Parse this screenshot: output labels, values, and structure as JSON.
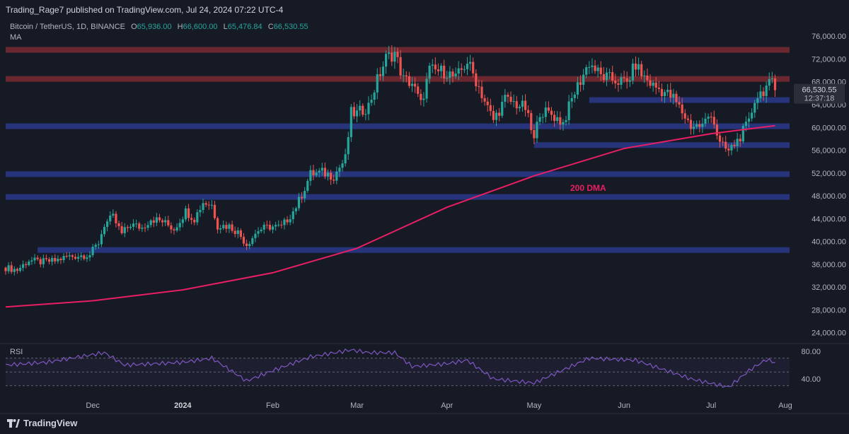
{
  "header": {
    "published_line": "Trading_Rage7 published on TradingView.com, Jul 24, 2024 07:22 UTC-4"
  },
  "symbol": {
    "name": "Bitcoin / TetherUS, 1D, BINANCE",
    "open_label": "O",
    "open": "65,936.00",
    "high_label": "H",
    "high": "66,600.00",
    "low_label": "L",
    "low": "65,476.84",
    "close_label": "C",
    "close": "66,530.55"
  },
  "indicators": {
    "ma_label": "MA",
    "rsi_label": "RSI"
  },
  "price_tag": {
    "price": "66,530.55",
    "countdown": "12:37:18"
  },
  "annotation": {
    "dma_label": "200 DMA"
  },
  "brand": {
    "name": "TradingView"
  },
  "colors": {
    "background": "#161a25",
    "up": "#26a69a",
    "down": "#ef5350",
    "ma": "#e91e63",
    "support": "#2a3a8c",
    "resistance": "#7a2a32",
    "rsi": "#7e57c2"
  },
  "chart_data": [
    {
      "type": "candlestick",
      "title": "Bitcoin / TetherUS, 1D, BINANCE",
      "x_tick_labels": [
        "Dec",
        "2024",
        "Feb",
        "Mar",
        "Apr",
        "May",
        "Jun",
        "Jul",
        "Aug"
      ],
      "y_tick_labels": [
        "76,000.00",
        "72,000.00",
        "68,000.00",
        "64,000.00",
        "60,000.00",
        "56,000.00",
        "52,000.00",
        "48,000.00",
        "44,000.00",
        "40,000.00",
        "36,000.00",
        "32,000.00",
        "28,000.00",
        "24,000.00"
      ],
      "ylim": [
        22000,
        78000
      ],
      "grid": false,
      "horizontal_levels": [
        {
          "price": 73600,
          "kind": "resistance"
        },
        {
          "price": 68500,
          "kind": "resistance"
        },
        {
          "price": 64800,
          "kind": "support",
          "from": "2024-05-20"
        },
        {
          "price": 60200,
          "kind": "support"
        },
        {
          "price": 56900,
          "kind": "support",
          "from": "2024-05-01"
        },
        {
          "price": 51800,
          "kind": "support"
        },
        {
          "price": 47800,
          "kind": "support"
        },
        {
          "price": 38500,
          "kind": "support",
          "from": "2023-11-12"
        }
      ],
      "close_series": [
        [
          "2023-11-01",
          35400
        ],
        [
          "2023-11-05",
          35000
        ],
        [
          "2023-11-09",
          36700
        ],
        [
          "2023-11-13",
          36400
        ],
        [
          "2023-11-18",
          36600
        ],
        [
          "2023-11-22",
          37300
        ],
        [
          "2023-11-26",
          37500
        ],
        [
          "2023-11-30",
          37700
        ],
        [
          "2023-12-03",
          39800
        ],
        [
          "2023-12-05",
          43000
        ],
        [
          "2023-12-08",
          44200
        ],
        [
          "2023-12-11",
          41300
        ],
        [
          "2023-12-14",
          43000
        ],
        [
          "2023-12-18",
          42400
        ],
        [
          "2023-12-21",
          44000
        ],
        [
          "2023-12-25",
          43500
        ],
        [
          "2023-12-29",
          42200
        ],
        [
          "2024-01-02",
          45300
        ],
        [
          "2024-01-05",
          44000
        ],
        [
          "2024-01-08",
          46900
        ],
        [
          "2024-01-11",
          46400
        ],
        [
          "2024-01-13",
          42800
        ],
        [
          "2024-01-17",
          42700
        ],
        [
          "2024-01-20",
          41600
        ],
        [
          "2024-01-23",
          39500
        ],
        [
          "2024-01-27",
          42000
        ],
        [
          "2024-01-31",
          42600
        ],
        [
          "2024-02-04",
          42500
        ],
        [
          "2024-02-08",
          45300
        ],
        [
          "2024-02-10",
          47100
        ],
        [
          "2024-02-14",
          51800
        ],
        [
          "2024-02-18",
          52100
        ],
        [
          "2024-02-22",
          51500
        ],
        [
          "2024-02-26",
          54500
        ],
        [
          "2024-02-28",
          62500
        ],
        [
          "2024-03-01",
          62400
        ],
        [
          "2024-03-05",
          63800
        ],
        [
          "2024-03-08",
          68300
        ],
        [
          "2024-03-11",
          72100
        ],
        [
          "2024-03-14",
          73100
        ],
        [
          "2024-03-17",
          68400
        ],
        [
          "2024-03-20",
          67800
        ],
        [
          "2024-03-23",
          64000
        ],
        [
          "2024-03-26",
          70000
        ],
        [
          "2024-03-29",
          69900
        ],
        [
          "2024-04-01",
          69700
        ],
        [
          "2024-04-04",
          68500
        ],
        [
          "2024-04-08",
          71600
        ],
        [
          "2024-04-12",
          67100
        ],
        [
          "2024-04-15",
          63400
        ],
        [
          "2024-04-17",
          61300
        ],
        [
          "2024-04-21",
          64900
        ],
        [
          "2024-04-24",
          64300
        ],
        [
          "2024-04-28",
          63400
        ],
        [
          "2024-05-01",
          57700
        ],
        [
          "2024-05-03",
          62900
        ],
        [
          "2024-05-07",
          62300
        ],
        [
          "2024-05-11",
          60800
        ],
        [
          "2024-05-15",
          66200
        ],
        [
          "2024-05-20",
          71400
        ],
        [
          "2024-05-24",
          69000
        ],
        [
          "2024-05-28",
          68400
        ],
        [
          "2024-06-02",
          67800
        ],
        [
          "2024-06-05",
          71100
        ],
        [
          "2024-06-07",
          69300
        ],
        [
          "2024-06-11",
          67300
        ],
        [
          "2024-06-15",
          66200
        ],
        [
          "2024-06-18",
          65100
        ],
        [
          "2024-06-24",
          60300
        ],
        [
          "2024-06-28",
          60300
        ],
        [
          "2024-07-01",
          62700
        ],
        [
          "2024-07-04",
          57000
        ],
        [
          "2024-07-07",
          55800
        ],
        [
          "2024-07-10",
          57700
        ],
        [
          "2024-07-14",
          60800
        ],
        [
          "2024-07-16",
          65000
        ],
        [
          "2024-07-20",
          67100
        ],
        [
          "2024-07-22",
          67600
        ],
        [
          "2024-07-23",
          66530
        ]
      ],
      "ma_200": [
        [
          "2023-11-01",
          28500
        ],
        [
          "2023-12-01",
          29600
        ],
        [
          "2024-01-01",
          31500
        ],
        [
          "2024-02-01",
          34500
        ],
        [
          "2024-03-01",
          38800
        ],
        [
          "2024-04-01",
          46000
        ],
        [
          "2024-05-01",
          51500
        ],
        [
          "2024-06-01",
          56300
        ],
        [
          "2024-07-01",
          58900
        ],
        [
          "2024-07-23",
          60300
        ]
      ]
    },
    {
      "type": "line",
      "title": "RSI",
      "y_tick_labels": [
        "80.00",
        "40.00"
      ],
      "ylim": [
        20,
        90
      ],
      "band": [
        30,
        70
      ],
      "series": [
        [
          "2023-11-01",
          60
        ],
        [
          "2023-11-15",
          64
        ],
        [
          "2023-12-05",
          78
        ],
        [
          "2023-12-12",
          60
        ],
        [
          "2024-01-01",
          64
        ],
        [
          "2024-01-11",
          70
        ],
        [
          "2024-01-23",
          37
        ],
        [
          "2024-02-01",
          52
        ],
        [
          "2024-02-14",
          72
        ],
        [
          "2024-02-28",
          82
        ],
        [
          "2024-03-05",
          78
        ],
        [
          "2024-03-14",
          78
        ],
        [
          "2024-03-20",
          58
        ],
        [
          "2024-04-01",
          62
        ],
        [
          "2024-04-08",
          67
        ],
        [
          "2024-04-17",
          40
        ],
        [
          "2024-05-01",
          34
        ],
        [
          "2024-05-20",
          70
        ],
        [
          "2024-06-05",
          67
        ],
        [
          "2024-06-24",
          40
        ],
        [
          "2024-07-07",
          28
        ],
        [
          "2024-07-15",
          55
        ],
        [
          "2024-07-20",
          68
        ],
        [
          "2024-07-23",
          64
        ]
      ]
    }
  ]
}
